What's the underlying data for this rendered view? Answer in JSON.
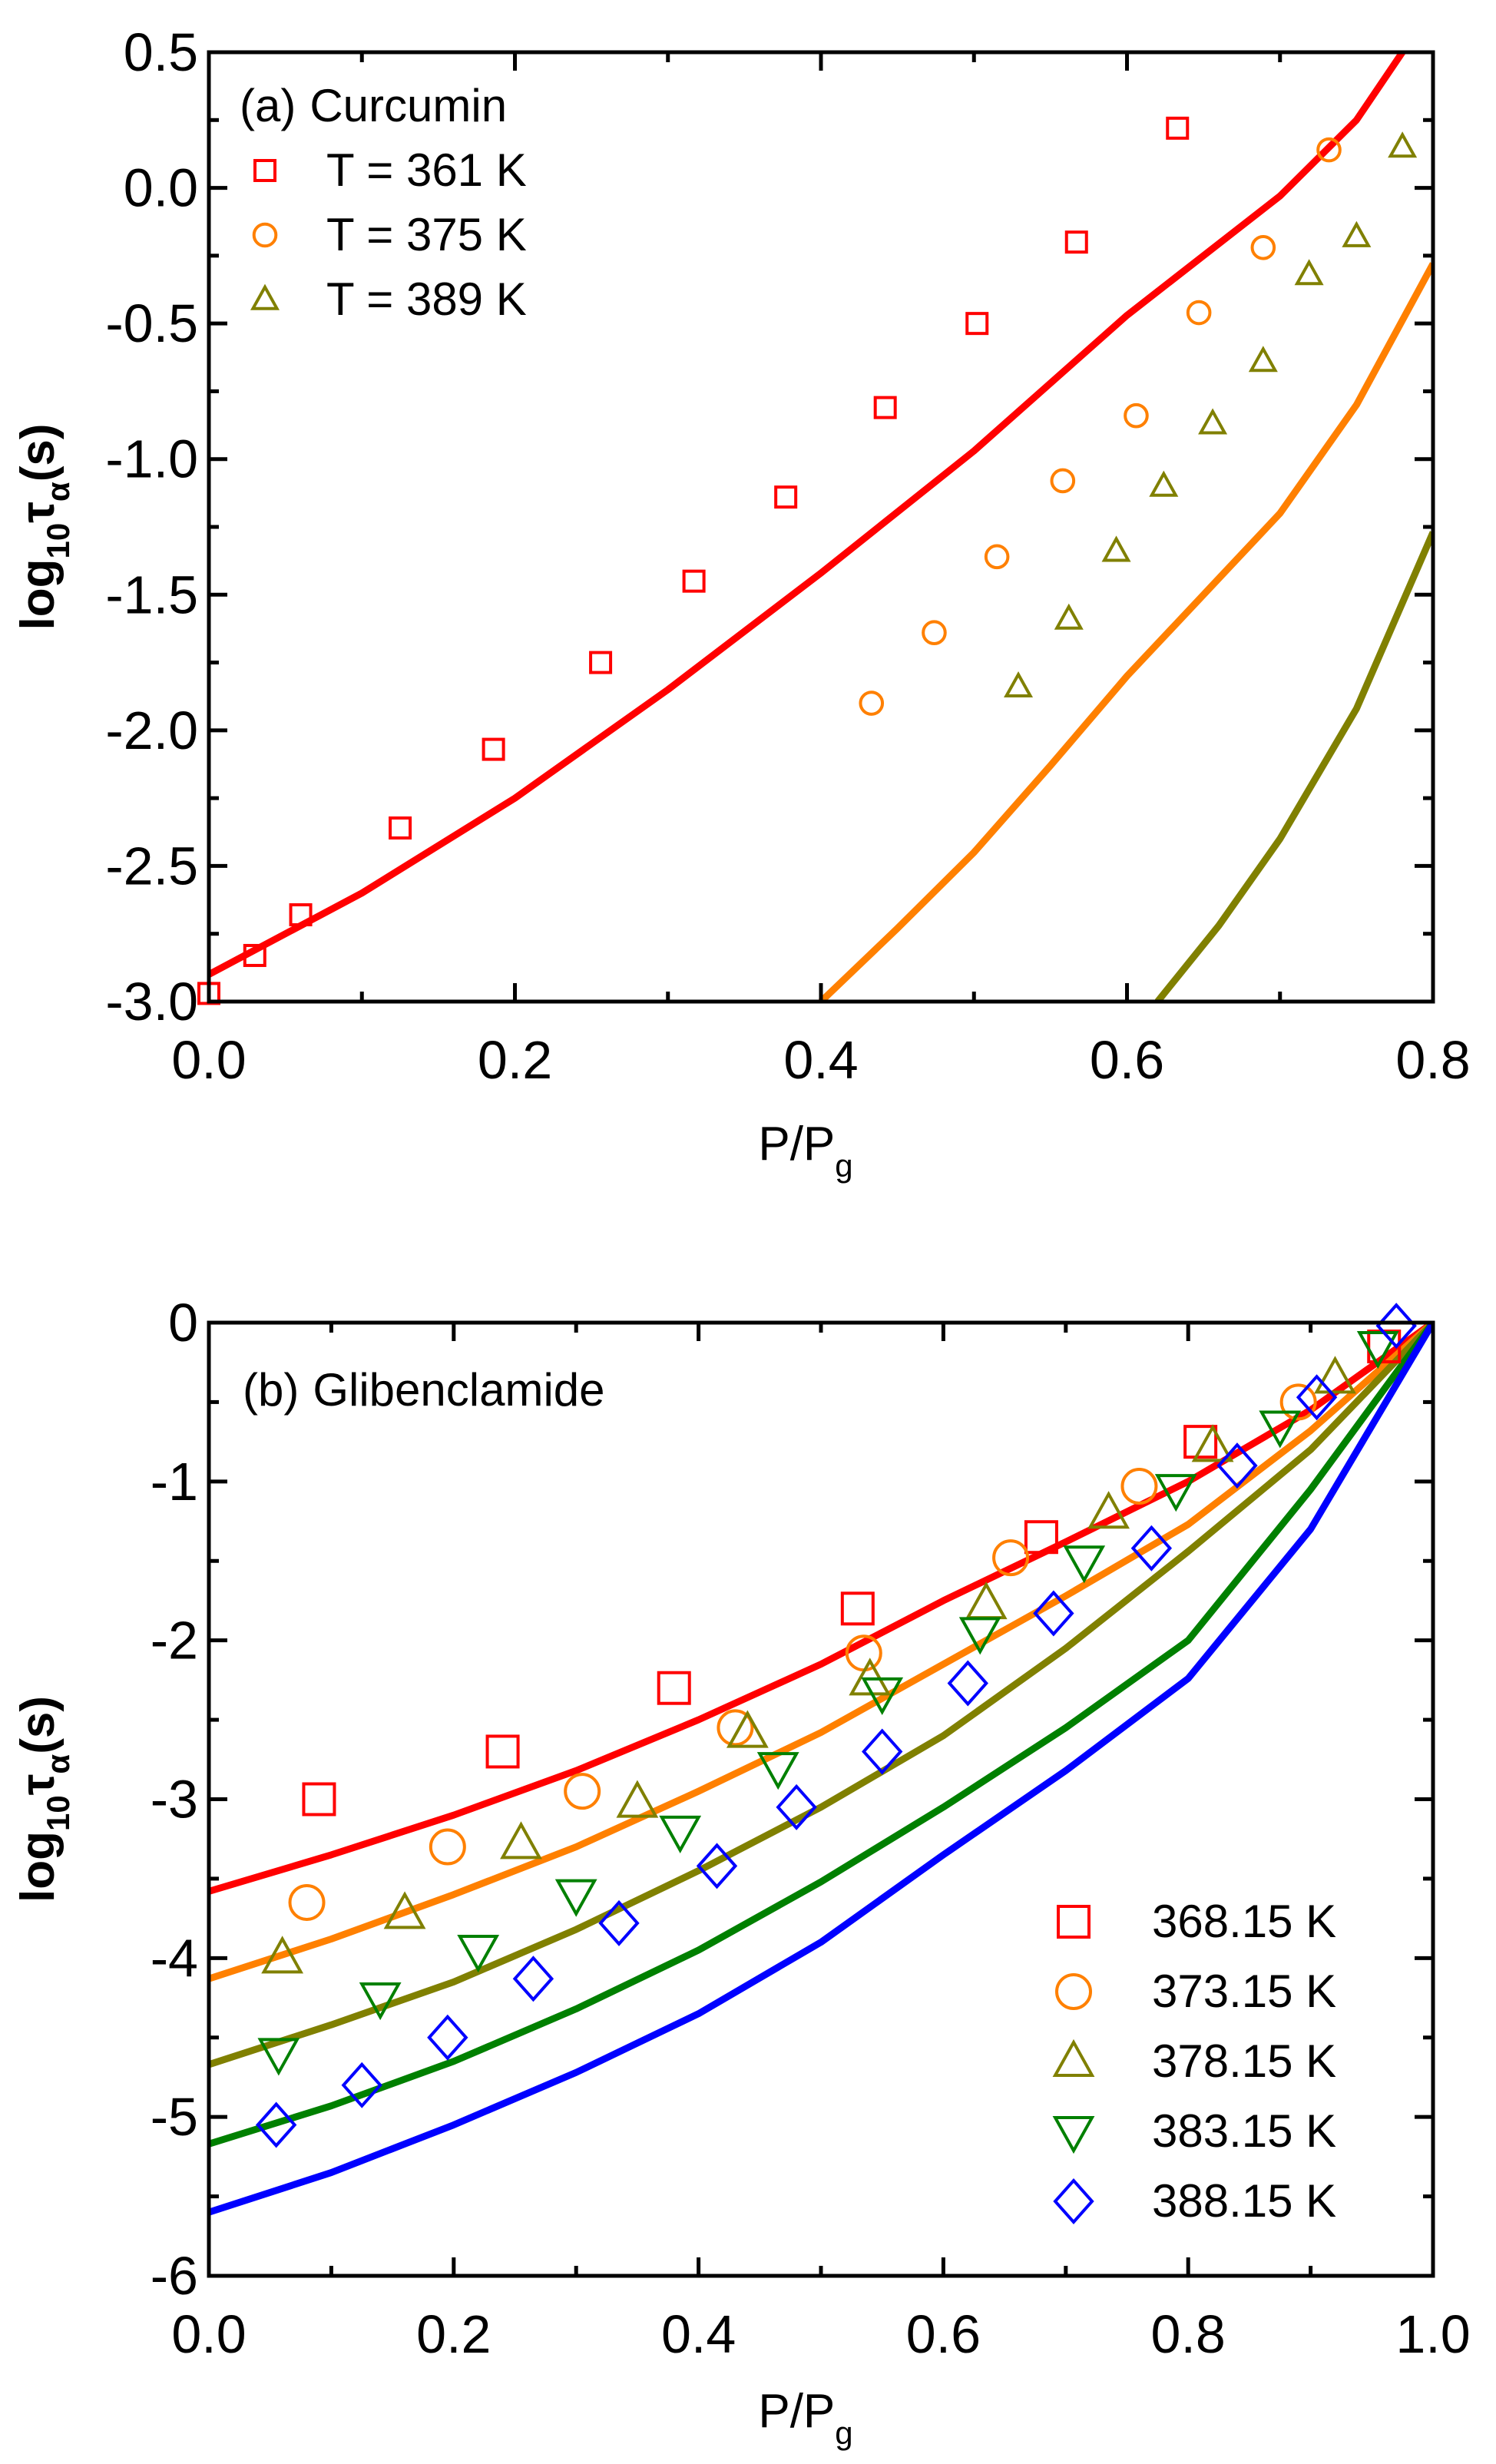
{
  "chart_data": [
    {
      "type": "scatter",
      "panel_label": "(a)",
      "title": "Curcumin",
      "xlabel": "P/P",
      "xlabel_sub": "g",
      "ylabel": "log",
      "ylabel_sub": "10",
      "ylabel_tau": "τ",
      "ylabel_tau_sub": "α",
      "ylabel_tail": "(s)",
      "xlim": [
        0,
        0.8
      ],
      "ylim": [
        -3.0,
        0.5
      ],
      "xticks": [
        "0.0",
        "0.2",
        "0.4",
        "0.6",
        "0.8"
      ],
      "xtick_values": [
        0,
        0.2,
        0.4,
        0.6,
        0.8
      ],
      "yticks": [
        "-3.0",
        "-2.5",
        "-2.0",
        "-1.5",
        "-1.0",
        "-0.5",
        "0.0",
        "0.5"
      ],
      "ytick_values": [
        -3,
        -2.5,
        -2,
        -1.5,
        -1,
        -0.5,
        0,
        0.5
      ],
      "legend_position": "top-left",
      "series": [
        {
          "name": "T = 361 K",
          "marker": "square",
          "color": "#ff0000",
          "points": [
            [
              0.0,
              -2.97
            ],
            [
              0.03,
              -2.83
            ],
            [
              0.06,
              -2.68
            ],
            [
              0.125,
              -2.36
            ],
            [
              0.186,
              -2.07
            ],
            [
              0.256,
              -1.75
            ],
            [
              0.317,
              -1.45
            ],
            [
              0.377,
              -1.14
            ],
            [
              0.442,
              -0.81
            ],
            [
              0.502,
              -0.5
            ],
            [
              0.567,
              -0.2
            ],
            [
              0.633,
              0.22
            ]
          ],
          "fit": [
            [
              0,
              -2.9
            ],
            [
              0.1,
              -2.6
            ],
            [
              0.2,
              -2.25
            ],
            [
              0.3,
              -1.85
            ],
            [
              0.4,
              -1.42
            ],
            [
              0.5,
              -0.97
            ],
            [
              0.6,
              -0.47
            ],
            [
              0.7,
              -0.03
            ],
            [
              0.75,
              0.25
            ],
            [
              0.78,
              0.5
            ]
          ]
        },
        {
          "name": "T = 375 K",
          "marker": "circle",
          "color": "#ff8000",
          "points": [
            [
              0.433,
              -1.9
            ],
            [
              0.474,
              -1.64
            ],
            [
              0.515,
              -1.36
            ],
            [
              0.558,
              -1.08
            ],
            [
              0.606,
              -0.84
            ],
            [
              0.647,
              -0.46
            ],
            [
              0.689,
              -0.22
            ],
            [
              0.732,
              0.14
            ]
          ],
          "fit": [
            [
              0.4,
              -3.0
            ],
            [
              0.45,
              -2.73
            ],
            [
              0.5,
              -2.45
            ],
            [
              0.55,
              -2.13
            ],
            [
              0.6,
              -1.8
            ],
            [
              0.65,
              -1.5
            ],
            [
              0.7,
              -1.2
            ],
            [
              0.75,
              -0.8
            ],
            [
              0.8,
              -0.28
            ]
          ]
        },
        {
          "name": "T = 389 K",
          "marker": "triangle-up",
          "color": "#808000",
          "points": [
            [
              0.529,
              -1.84
            ],
            [
              0.562,
              -1.59
            ],
            [
              0.593,
              -1.34
            ],
            [
              0.624,
              -1.1
            ],
            [
              0.656,
              -0.87
            ],
            [
              0.689,
              -0.64
            ],
            [
              0.719,
              -0.32
            ],
            [
              0.75,
              -0.18
            ],
            [
              0.78,
              0.15
            ]
          ],
          "fit": [
            [
              0.62,
              -3.0
            ],
            [
              0.66,
              -2.72
            ],
            [
              0.7,
              -2.4
            ],
            [
              0.75,
              -1.92
            ],
            [
              0.8,
              -1.27
            ]
          ]
        }
      ]
    },
    {
      "type": "scatter",
      "panel_label": "(b)",
      "title": "Glibenclamide",
      "xlabel": "P/P",
      "xlabel_sub": "g",
      "ylabel": "log",
      "ylabel_sub": "10",
      "ylabel_tau": "τ",
      "ylabel_tau_sub": "α",
      "ylabel_tail": "(s)",
      "xlim": [
        0,
        1.0
      ],
      "ylim": [
        -6,
        0
      ],
      "xticks": [
        "0.0",
        "0.2",
        "0.4",
        "0.6",
        "0.8",
        "1.0"
      ],
      "xtick_values": [
        0,
        0.2,
        0.4,
        0.6,
        0.8,
        1.0
      ],
      "yticks": [
        "-6",
        "-5",
        "-4",
        "-3",
        "-2",
        "-1",
        "0"
      ],
      "ytick_values": [
        -6,
        -5,
        -4,
        -3,
        -2,
        -1,
        0
      ],
      "legend_position": "bottom-right",
      "series": [
        {
          "name": "368.15 K",
          "marker": "square",
          "color": "#ff0000",
          "points": [
            [
              0.09,
              -3.0
            ],
            [
              0.24,
              -2.7
            ],
            [
              0.38,
              -2.3
            ],
            [
              0.53,
              -1.8
            ],
            [
              0.68,
              -1.35
            ],
            [
              0.81,
              -0.75
            ],
            [
              0.96,
              -0.15
            ]
          ],
          "fit": [
            [
              0,
              -3.58
            ],
            [
              0.1,
              -3.35
            ],
            [
              0.2,
              -3.1
            ],
            [
              0.3,
              -2.82
            ],
            [
              0.4,
              -2.5
            ],
            [
              0.5,
              -2.15
            ],
            [
              0.6,
              -1.75
            ],
            [
              0.7,
              -1.38
            ],
            [
              0.8,
              -1.0
            ],
            [
              0.9,
              -0.55
            ],
            [
              1,
              0
            ]
          ]
        },
        {
          "name": "373.15 K",
          "marker": "circle",
          "color": "#ff8000",
          "points": [
            [
              0.08,
              -3.65
            ],
            [
              0.195,
              -3.3
            ],
            [
              0.305,
              -2.95
            ],
            [
              0.43,
              -2.55
            ],
            [
              0.535,
              -2.08
            ],
            [
              0.655,
              -1.48
            ],
            [
              0.76,
              -1.03
            ],
            [
              0.89,
              -0.5
            ]
          ],
          "fit": [
            [
              0,
              -4.13
            ],
            [
              0.1,
              -3.88
            ],
            [
              0.2,
              -3.6
            ],
            [
              0.3,
              -3.3
            ],
            [
              0.4,
              -2.95
            ],
            [
              0.5,
              -2.58
            ],
            [
              0.6,
              -2.15
            ],
            [
              0.7,
              -1.72
            ],
            [
              0.8,
              -1.27
            ],
            [
              0.9,
              -0.68
            ],
            [
              1,
              0
            ]
          ]
        },
        {
          "name": "378.15 K",
          "marker": "triangle-up",
          "color": "#808000",
          "points": [
            [
              0.06,
              -4.0
            ],
            [
              0.16,
              -3.72
            ],
            [
              0.255,
              -3.28
            ],
            [
              0.35,
              -3.02
            ],
            [
              0.44,
              -2.58
            ],
            [
              0.54,
              -2.25
            ],
            [
              0.635,
              -1.77
            ],
            [
              0.735,
              -1.2
            ],
            [
              0.82,
              -0.78
            ],
            [
              0.92,
              -0.35
            ]
          ],
          "fit": [
            [
              0,
              -4.67
            ],
            [
              0.1,
              -4.42
            ],
            [
              0.2,
              -4.15
            ],
            [
              0.3,
              -3.82
            ],
            [
              0.4,
              -3.45
            ],
            [
              0.5,
              -3.05
            ],
            [
              0.6,
              -2.6
            ],
            [
              0.7,
              -2.05
            ],
            [
              0.8,
              -1.44
            ],
            [
              0.9,
              -0.8
            ],
            [
              1,
              0
            ]
          ]
        },
        {
          "name": "383.15 K",
          "marker": "triangle-down",
          "color": "#008000",
          "points": [
            [
              0.057,
              -4.6
            ],
            [
              0.14,
              -4.25
            ],
            [
              0.22,
              -3.95
            ],
            [
              0.3,
              -3.6
            ],
            [
              0.385,
              -3.2
            ],
            [
              0.465,
              -2.8
            ],
            [
              0.55,
              -2.33
            ],
            [
              0.63,
              -1.95
            ],
            [
              0.715,
              -1.5
            ],
            [
              0.79,
              -1.05
            ],
            [
              0.875,
              -0.65
            ],
            [
              0.955,
              -0.15
            ]
          ],
          "fit": [
            [
              0,
              -5.17
            ],
            [
              0.1,
              -4.93
            ],
            [
              0.2,
              -4.65
            ],
            [
              0.3,
              -4.32
            ],
            [
              0.4,
              -3.95
            ],
            [
              0.5,
              -3.52
            ],
            [
              0.6,
              -3.05
            ],
            [
              0.7,
              -2.55
            ],
            [
              0.8,
              -2.0
            ],
            [
              0.9,
              -1.05
            ],
            [
              1,
              0
            ]
          ]
        },
        {
          "name": "388.15 K",
          "marker": "diamond",
          "color": "#0000ff",
          "points": [
            [
              0.055,
              -5.05
            ],
            [
              0.125,
              -4.8
            ],
            [
              0.195,
              -4.5
            ],
            [
              0.265,
              -4.13
            ],
            [
              0.335,
              -3.78
            ],
            [
              0.415,
              -3.42
            ],
            [
              0.48,
              -3.05
            ],
            [
              0.55,
              -2.7
            ],
            [
              0.62,
              -2.27
            ],
            [
              0.69,
              -1.83
            ],
            [
              0.77,
              -1.42
            ],
            [
              0.84,
              -0.9
            ],
            [
              0.905,
              -0.47
            ],
            [
              0.97,
              -0.02
            ]
          ],
          "fit": [
            [
              0,
              -5.6
            ],
            [
              0.1,
              -5.35
            ],
            [
              0.2,
              -5.05
            ],
            [
              0.3,
              -4.72
            ],
            [
              0.4,
              -4.35
            ],
            [
              0.5,
              -3.9
            ],
            [
              0.6,
              -3.35
            ],
            [
              0.7,
              -2.82
            ],
            [
              0.8,
              -2.24
            ],
            [
              0.9,
              -1.3
            ],
            [
              1,
              0
            ]
          ]
        }
      ]
    }
  ]
}
